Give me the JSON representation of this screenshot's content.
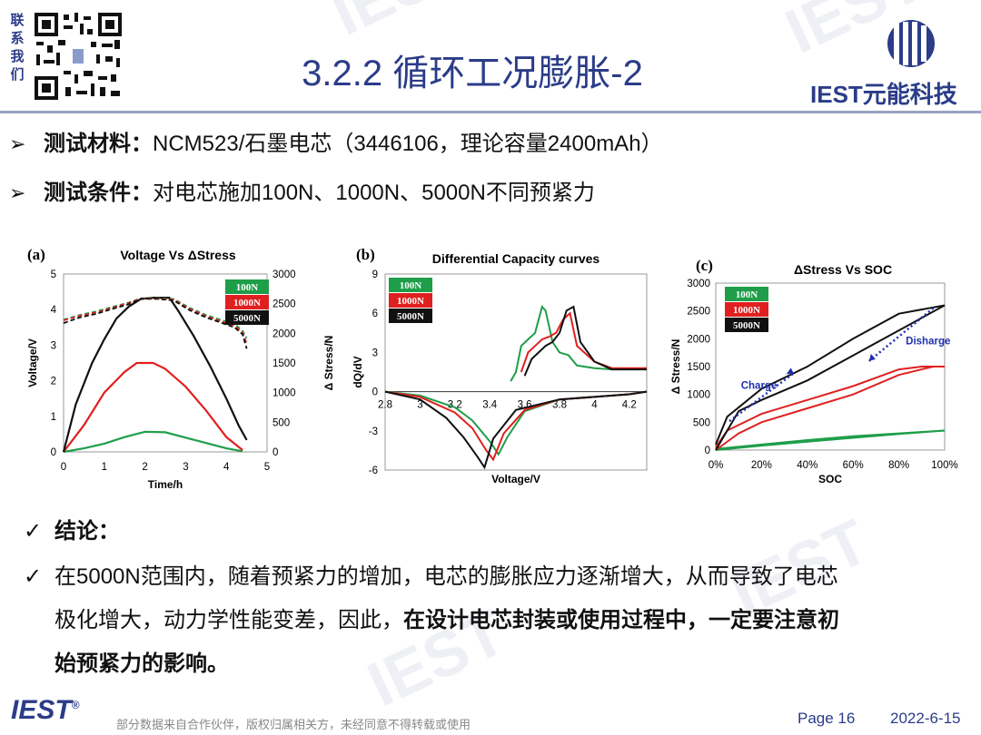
{
  "header": {
    "contact_chars": [
      "联",
      "系",
      "我",
      "们"
    ],
    "title": "3.2.2 循环工况膨胀-2",
    "brand_logo_text": "IEST元能科技"
  },
  "bullets": [
    {
      "label": "测试材料：",
      "text": "NCM523/石墨电芯（3446106，理论容量2400mAh）"
    },
    {
      "label": "测试条件：",
      "text": "对电芯施加100N、1000N、5000N不同预紧力"
    }
  ],
  "colors": {
    "brand": "#2b3c88",
    "green": "#1f9e4a",
    "red": "#e02020",
    "black": "#111111",
    "blue_arrow": "#1f2fb0"
  },
  "legend": [
    "100N",
    "1000N",
    "5000N"
  ],
  "chart_data": [
    {
      "panel": "(a)",
      "type": "line",
      "title": "Voltage Vs ΔStress",
      "xlabel": "Time/h",
      "ylabel": "Voltage/V",
      "y2label": "Δ Stress/N",
      "xlim": [
        0,
        5
      ],
      "ylim": [
        0,
        5
      ],
      "y2lim": [
        0,
        3000
      ],
      "xticks": [
        "0",
        "1",
        "2",
        "3",
        "4",
        "5"
      ],
      "yticks": [
        "0",
        "1",
        "2",
        "3",
        "4",
        "5"
      ],
      "y2ticks": [
        "0",
        "500",
        "1000",
        "1500",
        "2000",
        "2500",
        "3000"
      ],
      "series": [
        {
          "name": "100N",
          "kind": "stress",
          "x": [
            0,
            0.5,
            1,
            1.5,
            2,
            2.5,
            3,
            3.5,
            4,
            4.4
          ],
          "y": [
            0,
            60,
            140,
            250,
            340,
            330,
            240,
            150,
            60,
            10
          ]
        },
        {
          "name": "1000N",
          "kind": "stress",
          "x": [
            0,
            0.5,
            1,
            1.5,
            1.8,
            2.2,
            2.5,
            3,
            3.5,
            4,
            4.4
          ],
          "y": [
            0,
            450,
            1000,
            1350,
            1500,
            1500,
            1400,
            1100,
            700,
            250,
            30
          ]
        },
        {
          "name": "5000N",
          "kind": "stress",
          "x": [
            0,
            0.3,
            0.7,
            1,
            1.3,
            1.6,
            1.9,
            2.2,
            2.6,
            2.8,
            3.2,
            3.6,
            4,
            4.3,
            4.5
          ],
          "y": [
            0,
            800,
            1500,
            1900,
            2250,
            2450,
            2580,
            2600,
            2600,
            2400,
            1950,
            1450,
            900,
            450,
            200
          ]
        },
        {
          "name": "100N",
          "kind": "voltage",
          "x": [
            0,
            0.4,
            0.8,
            1.2,
            1.6,
            1.9,
            2.3,
            2.7,
            3.1,
            3.5,
            3.9,
            4.2,
            4.4,
            4.5
          ],
          "y": [
            3.72,
            3.85,
            3.95,
            4.08,
            4.2,
            4.32,
            4.32,
            4.3,
            4.05,
            3.85,
            3.7,
            3.6,
            3.4,
            3.2
          ]
        },
        {
          "name": "1000N",
          "kind": "voltage",
          "x": [
            0,
            0.4,
            0.8,
            1.2,
            1.6,
            1.9,
            2.3,
            2.7,
            3.1,
            3.5,
            3.9,
            4.2,
            4.4,
            4.5
          ],
          "y": [
            3.7,
            3.83,
            3.92,
            4.05,
            4.18,
            4.31,
            4.31,
            4.28,
            4.02,
            3.82,
            3.66,
            3.55,
            3.35,
            3.05
          ]
        },
        {
          "name": "5000N",
          "kind": "voltage",
          "x": [
            0,
            0.4,
            0.8,
            1.2,
            1.6,
            1.9,
            2.3,
            2.7,
            3.1,
            3.5,
            3.9,
            4.2,
            4.4,
            4.5
          ],
          "y": [
            3.62,
            3.78,
            3.88,
            4.02,
            4.15,
            4.3,
            4.3,
            4.26,
            3.98,
            3.78,
            3.62,
            3.5,
            3.3,
            2.9
          ]
        }
      ]
    },
    {
      "panel": "(b)",
      "type": "line",
      "title": "Differential Capacity curves",
      "xlabel": "Voltage/V",
      "ylabel": "dQ/dV",
      "xlim": [
        2.8,
        4.3
      ],
      "ylim": [
        -6,
        9
      ],
      "xticks": [
        "2.8",
        "3",
        "3.2",
        "3.4",
        "3.6",
        "3.8",
        "4",
        "4.2"
      ],
      "yticks": [
        "-6",
        "-3",
        "0",
        "3",
        "6",
        "9"
      ],
      "series": [
        {
          "name": "100N",
          "kind": "charge",
          "x": [
            3.52,
            3.55,
            3.58,
            3.62,
            3.66,
            3.7,
            3.72,
            3.74,
            3.76,
            3.8,
            3.85,
            3.9,
            4,
            4.1,
            4.3
          ],
          "y": [
            0.8,
            1.5,
            3.5,
            4,
            4.5,
            6.5,
            6.2,
            5,
            3.8,
            3,
            2.8,
            2,
            1.8,
            1.7,
            1.8
          ]
        },
        {
          "name": "1000N",
          "kind": "charge",
          "x": [
            3.58,
            3.62,
            3.66,
            3.7,
            3.74,
            3.78,
            3.82,
            3.86,
            3.9,
            4,
            4.1,
            4.3
          ],
          "y": [
            1.5,
            3,
            3.5,
            4,
            4.2,
            4.5,
            5.5,
            6,
            3.5,
            2.3,
            1.8,
            1.8
          ]
        },
        {
          "name": "5000N",
          "kind": "charge",
          "x": [
            3.6,
            3.64,
            3.68,
            3.72,
            3.76,
            3.8,
            3.84,
            3.88,
            3.92,
            4,
            4.1,
            4.3
          ],
          "y": [
            1.2,
            2.5,
            3,
            3.5,
            3.8,
            4.5,
            6.2,
            6.5,
            3.8,
            2.3,
            1.7,
            1.7
          ]
        },
        {
          "name": "100N",
          "kind": "discharge",
          "x": [
            2.8,
            3,
            3.2,
            3.3,
            3.4,
            3.45,
            3.5,
            3.6,
            3.8,
            4,
            4.2,
            4.3
          ],
          "y": [
            0,
            -0.3,
            -1.2,
            -2.2,
            -3.8,
            -4.8,
            -3.5,
            -1.5,
            -0.6,
            -0.4,
            -0.2,
            0
          ]
        },
        {
          "name": "1000N",
          "kind": "discharge",
          "x": [
            2.8,
            3,
            3.2,
            3.3,
            3.38,
            3.42,
            3.48,
            3.6,
            3.8,
            4,
            4.2,
            4.3
          ],
          "y": [
            0,
            -0.4,
            -1.6,
            -2.8,
            -4.5,
            -5.2,
            -3.2,
            -1.4,
            -0.6,
            -0.4,
            -0.2,
            0
          ]
        },
        {
          "name": "5000N",
          "kind": "discharge",
          "x": [
            2.8,
            3,
            3.15,
            3.25,
            3.33,
            3.37,
            3.42,
            3.55,
            3.8,
            4,
            4.2,
            4.3
          ],
          "y": [
            0,
            -0.6,
            -2,
            -3.5,
            -5,
            -5.8,
            -3.6,
            -1.4,
            -0.6,
            -0.4,
            -0.2,
            0
          ]
        }
      ]
    },
    {
      "panel": "(c)",
      "type": "line",
      "title": "ΔStress Vs SOC",
      "xlabel": "SOC",
      "ylabel": "Δ Stress/N",
      "xlim": [
        0,
        100
      ],
      "ylim": [
        0,
        3000
      ],
      "xticks": [
        "0%",
        "20%",
        "40%",
        "60%",
        "80%",
        "100%"
      ],
      "yticks": [
        "0",
        "500",
        "1000",
        "1500",
        "2000",
        "2500",
        "3000"
      ],
      "annotations": [
        "Charge",
        "Disharge"
      ],
      "series": [
        {
          "name": "100N",
          "kind": "charge",
          "x": [
            0,
            20,
            40,
            60,
            80,
            100
          ],
          "y": [
            0,
            80,
            150,
            220,
            290,
            350
          ]
        },
        {
          "name": "100N",
          "kind": "discharge",
          "x": [
            100,
            80,
            60,
            40,
            20,
            0
          ],
          "y": [
            350,
            300,
            250,
            180,
            100,
            20
          ]
        },
        {
          "name": "1000N",
          "kind": "charge",
          "x": [
            0,
            10,
            20,
            40,
            60,
            80,
            95,
            100
          ],
          "y": [
            0,
            300,
            500,
            750,
            1000,
            1350,
            1500,
            1500
          ]
        },
        {
          "name": "1000N",
          "kind": "discharge",
          "x": [
            100,
            90,
            80,
            60,
            40,
            20,
            5,
            0
          ],
          "y": [
            1500,
            1500,
            1450,
            1150,
            900,
            650,
            350,
            50
          ]
        },
        {
          "name": "5000N",
          "kind": "charge",
          "x": [
            0,
            10,
            20,
            40,
            60,
            80,
            100
          ],
          "y": [
            0,
            700,
            900,
            1250,
            1700,
            2150,
            2600
          ]
        },
        {
          "name": "5000N",
          "kind": "discharge",
          "x": [
            100,
            80,
            60,
            40,
            20,
            5,
            0
          ],
          "y": [
            2600,
            2450,
            2000,
            1500,
            1100,
            600,
            100
          ]
        }
      ]
    }
  ],
  "conclusion": {
    "heading": "结论：",
    "body_plain_1": "在5000N范围内，随着预紧力的增加，电芯的膨胀应力逐渐增大，从而导致了电芯",
    "body_plain_2": "极化增大，动力学性能变差，因此，",
    "body_bold_2": "在设计电芯封装或使用过程中，一定要注意初",
    "body_bold_3": "始预紧力的影响。"
  },
  "footer": {
    "logo": "IEST",
    "registered": "®",
    "note": "部分数据来自合作伙伴，版权归属相关方，未经同意不得转载或使用",
    "page": "Page 16",
    "date": "2022-6-15"
  }
}
